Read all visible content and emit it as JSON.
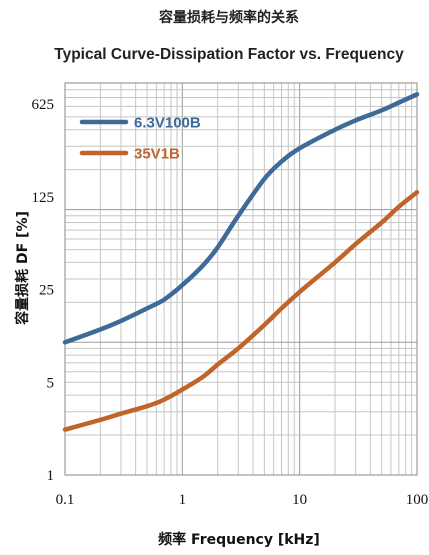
{
  "chart_data": {
    "type": "line",
    "title": "容量损耗与频率的关系",
    "subtitle": "Typical Curve-Dissipation Factor vs. Frequency",
    "xlabel": "频率 Frequency [kHz]",
    "ylabel": "容量损耗 DF [%]",
    "x_scale": "log",
    "y_scale": "log",
    "xlim": [
      0.1,
      100
    ],
    "ylim": [
      1,
      900
    ],
    "x_ticks": [
      "0.1",
      "1",
      "10",
      "100"
    ],
    "y_ticks": [
      "1",
      "5",
      "25",
      "125",
      "625"
    ],
    "grid": true,
    "legend_position": "top-left",
    "series": [
      {
        "name": "6.3V100B",
        "color": "#3e6a98",
        "x": [
          0.1,
          0.2,
          0.3,
          0.5,
          0.7,
          1,
          1.5,
          2,
          3,
          5,
          7,
          10,
          20,
          30,
          50,
          70,
          100
        ],
        "y": [
          10,
          12.5,
          14.5,
          18,
          21,
          27,
          38,
          52,
          90,
          170,
          230,
          290,
          400,
          470,
          560,
          640,
          740
        ]
      },
      {
        "name": "35V1B",
        "color": "#c0642a",
        "x": [
          0.1,
          0.2,
          0.3,
          0.5,
          0.7,
          1,
          1.5,
          2,
          3,
          5,
          7,
          10,
          20,
          30,
          50,
          70,
          100
        ],
        "y": [
          2.2,
          2.6,
          2.9,
          3.3,
          3.7,
          4.4,
          5.5,
          6.8,
          9,
          13.5,
          18,
          24,
          40,
          55,
          80,
          105,
          135
        ]
      }
    ]
  }
}
